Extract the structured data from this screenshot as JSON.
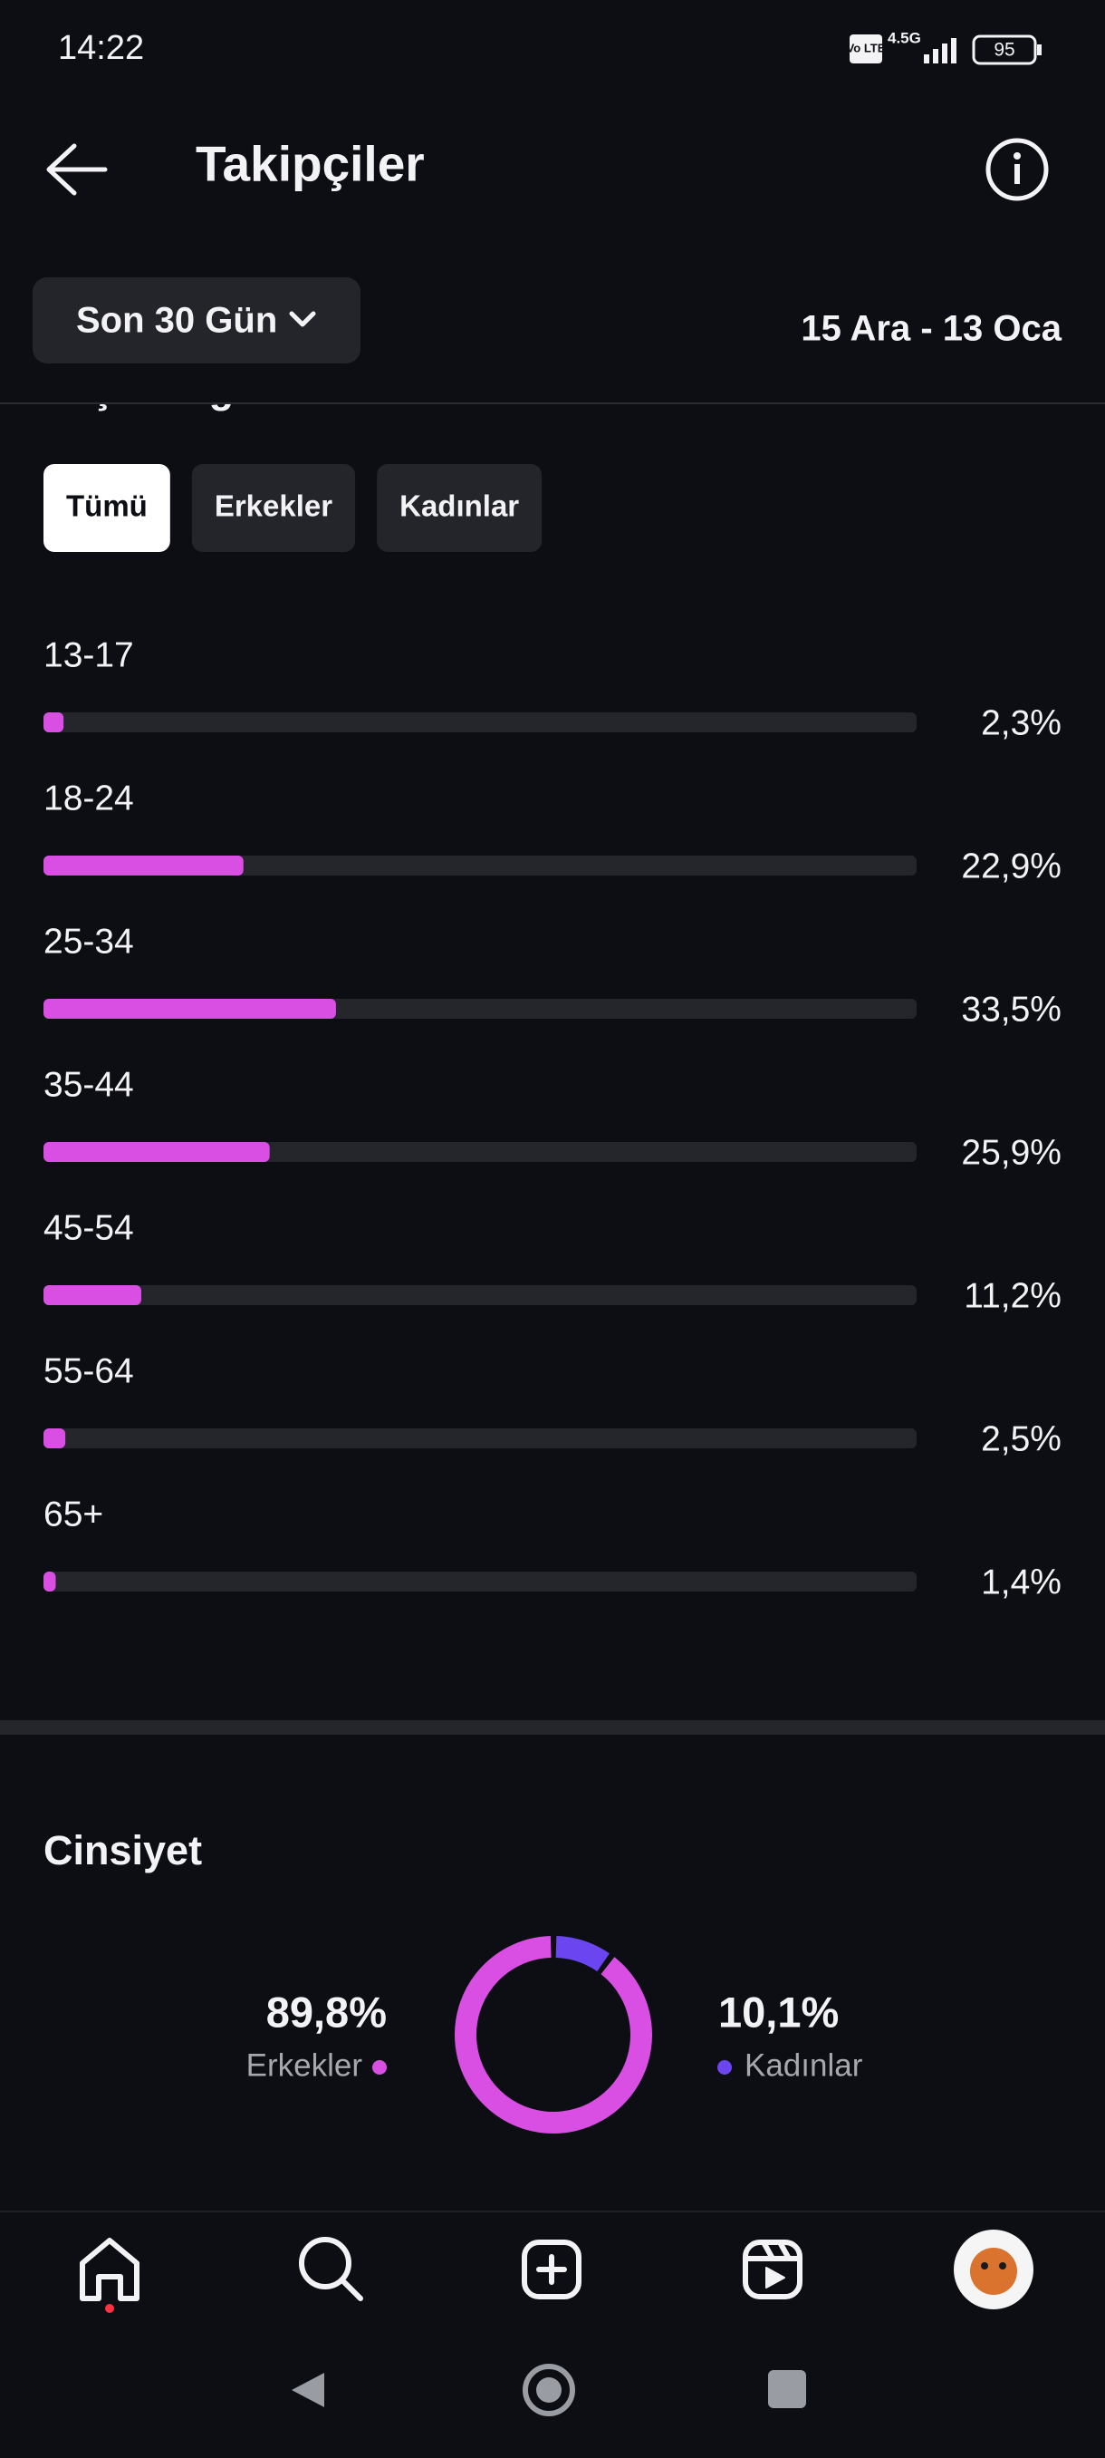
{
  "status_bar": {
    "time": "14:22",
    "volte": "Vo LTE",
    "network": "4.5G",
    "battery": "95"
  },
  "header": {
    "title": "Takipçiler"
  },
  "filter": "Son 30 Gün",
  "date_range": "15 Ara - 13 Oca",
  "section_title": "Yaş aralığı",
  "tabs": [
    "Tümü",
    "Erkekler",
    "Kadınlar"
  ],
  "chart_data": [
    {
      "type": "hbar",
      "categories": [
        "13-17",
        "18-24",
        "25-34",
        "35-44",
        "45-54",
        "55-64",
        "65+"
      ],
      "values": [
        2.3,
        22.9,
        33.5,
        25.9,
        11.2,
        2.5,
        1.4
      ],
      "value_labels": [
        "2,3%",
        "22,9%",
        "33,5%",
        "25,9%",
        "11,2%",
        "2,5%",
        "1,4%"
      ],
      "color": "#d94fe3",
      "xlim": [
        0,
        100
      ]
    },
    {
      "type": "donut",
      "title": "Cinsiyet",
      "categories": [
        "Erkekler",
        "Kadınlar"
      ],
      "values": [
        89.8,
        10.1
      ],
      "value_labels": [
        "89,8%",
        "10,1%"
      ],
      "colors": [
        "#d94fe3",
        "#6b45f0"
      ]
    }
  ]
}
